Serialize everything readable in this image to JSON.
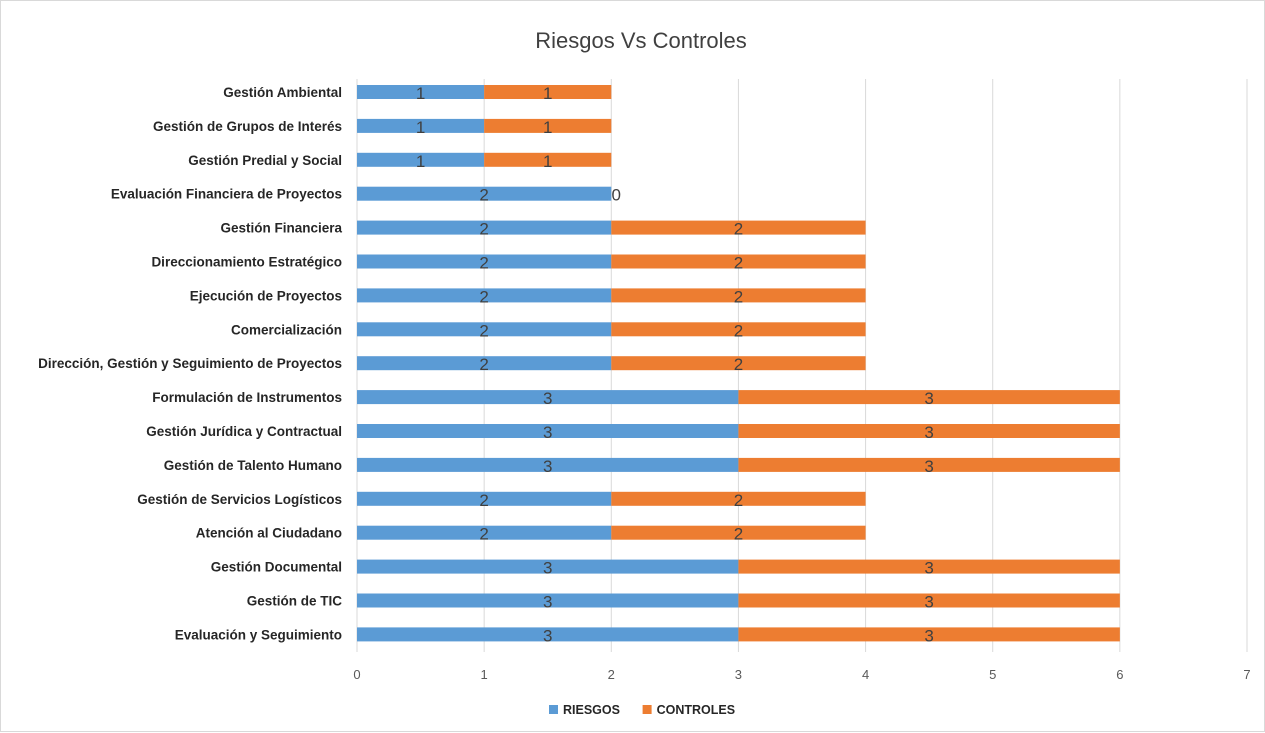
{
  "chart_data": {
    "type": "bar",
    "orientation": "horizontal",
    "stacked": true,
    "title": "Riesgos Vs Controles",
    "categories": [
      "Gestión Ambiental",
      "Gestión de Grupos de Interés",
      "Gestión Predial y Social",
      "Evaluación Financiera de Proyectos",
      "Gestión Financiera",
      "Direccionamiento Estratégico",
      "Ejecución de Proyectos",
      "Comercialización",
      "Dirección, Gestión y Seguimiento de Proyectos",
      "Formulación de Instrumentos",
      "Gestión Jurídica y Contractual",
      "Gestión de Talento Humano",
      "Gestión de Servicios Logísticos",
      "Atención al Ciudadano",
      "Gestión Documental",
      "Gestión de TIC",
      "Evaluación y Seguimiento"
    ],
    "series": [
      {
        "name": "RIESGOS",
        "color": "#5b9bd5",
        "values": [
          1,
          1,
          1,
          2,
          2,
          2,
          2,
          2,
          2,
          3,
          3,
          3,
          2,
          2,
          3,
          3,
          3
        ]
      },
      {
        "name": "CONTROLES",
        "color": "#ed7d31",
        "values": [
          1,
          1,
          1,
          0,
          2,
          2,
          2,
          2,
          2,
          3,
          3,
          3,
          2,
          2,
          3,
          3,
          3
        ]
      }
    ],
    "xlim": [
      0,
      7
    ],
    "xticks": [
      "0",
      "1",
      "2",
      "3",
      "4",
      "5",
      "6",
      "7"
    ],
    "grid": true,
    "data_labels": true,
    "legend_position": "bottom"
  }
}
